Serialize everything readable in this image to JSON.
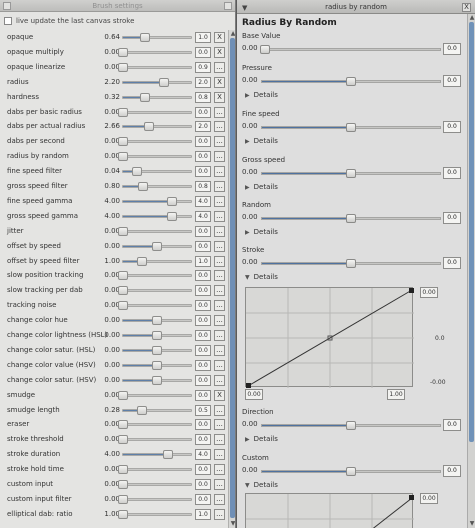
{
  "brush": {
    "title": "Brush settings",
    "live_update": "live update the last canvas stroke",
    "settings": [
      {
        "label": "opaque",
        "value": "0.64",
        "box": "1.0",
        "btn": "X",
        "pos": 0.32
      },
      {
        "label": "opaque multiply",
        "value": "0.00",
        "box": "0.0",
        "btn": "X",
        "pos": 0.0
      },
      {
        "label": "opaque linearize",
        "value": "0.00",
        "box": "0.9",
        "btn": "...",
        "pos": 0.0
      },
      {
        "label": "radius",
        "value": "2.20",
        "box": "2.0",
        "btn": "X",
        "pos": 0.6
      },
      {
        "label": "hardness",
        "value": "0.32",
        "box": "0.8",
        "btn": "X",
        "pos": 0.32
      },
      {
        "label": "dabs per basic radius",
        "value": "0.00",
        "box": "0.0",
        "btn": "...",
        "pos": 0.0
      },
      {
        "label": "dabs per actual radius",
        "value": "2.66",
        "box": "2.0",
        "btn": "...",
        "pos": 0.38
      },
      {
        "label": "dabs per second",
        "value": "0.00",
        "box": "0.0",
        "btn": "...",
        "pos": 0.0
      },
      {
        "label": "radius by random",
        "value": "0.00",
        "box": "0.0",
        "btn": "...",
        "pos": 0.0
      },
      {
        "label": "fine speed filter",
        "value": "0.04",
        "box": "0.0",
        "btn": "...",
        "pos": 0.2
      },
      {
        "label": "gross speed filter",
        "value": "0.80",
        "box": "0.8",
        "btn": "...",
        "pos": 0.3
      },
      {
        "label": "fine speed gamma",
        "value": "4.00",
        "box": "4.0",
        "btn": "...",
        "pos": 0.72
      },
      {
        "label": "gross speed gamma",
        "value": "4.00",
        "box": "4.0",
        "btn": "...",
        "pos": 0.72
      },
      {
        "label": "jitter",
        "value": "0.00",
        "box": "0.0",
        "btn": "...",
        "pos": 0.0
      },
      {
        "label": "offset by speed",
        "value": "0.00",
        "box": "0.0",
        "btn": "...",
        "pos": 0.5
      },
      {
        "label": "offset by speed filter",
        "value": "1.00",
        "box": "1.0",
        "btn": "...",
        "pos": 0.28
      },
      {
        "label": "slow position tracking",
        "value": "0.00",
        "box": "0.0",
        "btn": "...",
        "pos": 0.0
      },
      {
        "label": "slow tracking per dab",
        "value": "0.00",
        "box": "0.0",
        "btn": "...",
        "pos": 0.0
      },
      {
        "label": "tracking noise",
        "value": "0.00",
        "box": "0.0",
        "btn": "...",
        "pos": 0.0
      },
      {
        "label": "change color hue",
        "value": "0.00",
        "box": "0.0",
        "btn": "...",
        "pos": 0.5
      },
      {
        "label": "change color lightness (HSL)",
        "value": "0.00",
        "box": "0.0",
        "btn": "...",
        "pos": 0.5
      },
      {
        "label": "change color satur. (HSL)",
        "value": "0.00",
        "box": "0.0",
        "btn": "...",
        "pos": 0.5
      },
      {
        "label": "change color value (HSV)",
        "value": "0.00",
        "box": "0.0",
        "btn": "...",
        "pos": 0.5
      },
      {
        "label": "change color satur. (HSV)",
        "value": "0.00",
        "box": "0.0",
        "btn": "...",
        "pos": 0.5
      },
      {
        "label": "smudge",
        "value": "0.00",
        "box": "0.0",
        "btn": "X",
        "pos": 0.0
      },
      {
        "label": "smudge length",
        "value": "0.28",
        "box": "0.5",
        "btn": "...",
        "pos": 0.28
      },
      {
        "label": "eraser",
        "value": "0.00",
        "box": "0.0",
        "btn": "...",
        "pos": 0.0
      },
      {
        "label": "stroke threshold",
        "value": "0.00",
        "box": "0.0",
        "btn": "...",
        "pos": 0.0
      },
      {
        "label": "stroke duration",
        "value": "4.00",
        "box": "4.0",
        "btn": "...",
        "pos": 0.66
      },
      {
        "label": "stroke hold time",
        "value": "0.00",
        "box": "0.0",
        "btn": "...",
        "pos": 0.0
      },
      {
        "label": "custom input",
        "value": "0.00",
        "box": "0.0",
        "btn": "...",
        "pos": 0.0
      },
      {
        "label": "custom input filter",
        "value": "0.00",
        "box": "0.0",
        "btn": "...",
        "pos": 0.0
      },
      {
        "label": "elliptical dab: ratio",
        "value": "1.00",
        "box": "1.0",
        "btn": "...",
        "pos": 0.0
      }
    ]
  },
  "random": {
    "title": "radius by random",
    "menu_icon": "chevron-down-icon",
    "close": "X",
    "heading": "Radius By Random",
    "base_label": "Base Value",
    "base_value": "0.00",
    "base_box": "0.0",
    "inputs": [
      {
        "label": "Pressure",
        "value": "0.00",
        "box": "0.0",
        "details": "Details",
        "pos": 0.5
      },
      {
        "label": "Fine speed",
        "value": "0.00",
        "box": "0.0",
        "details": "Details",
        "pos": 0.5
      },
      {
        "label": "Gross speed",
        "value": "0.00",
        "box": "0.0",
        "details": "Details",
        "pos": 0.5
      },
      {
        "label": "Random",
        "value": "0.00",
        "box": "0.0",
        "details": "Details",
        "pos": 0.5
      },
      {
        "label": "Stroke",
        "value": "0.00",
        "box": "0.0",
        "details": "Details",
        "pos": 0.5
      },
      {
        "label": "Direction",
        "value": "0.00",
        "box": "0.0",
        "details": "Details",
        "pos": 0.5
      },
      {
        "label": "Custom",
        "value": "0.00",
        "box": "0.0",
        "details": "Details",
        "pos": 0.5
      }
    ],
    "curve1": {
      "top_box": "0.00",
      "mid": "0.0",
      "bottom": "-0.00",
      "left_box": "0.00",
      "right_box": "1.00"
    },
    "curve2": {
      "top_box": "0.00"
    }
  },
  "colors": {
    "accent": "#5e7fa8"
  }
}
